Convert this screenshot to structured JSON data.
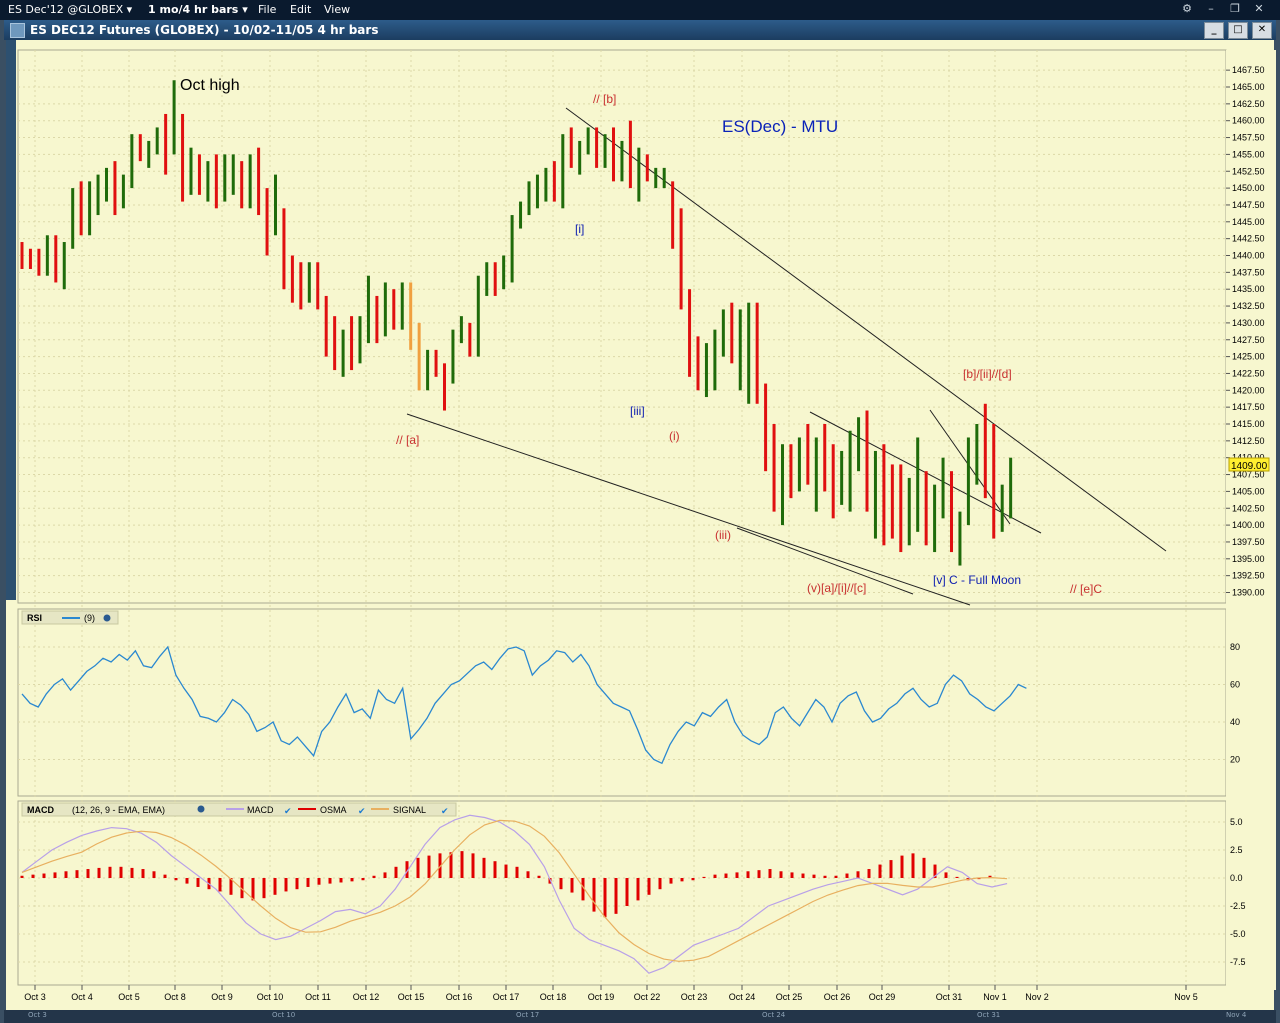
{
  "menubar": {
    "symbol_menu": "ES Dec'12 @GLOBEX ▾",
    "interval_menu": "1 mo/4 hr bars ▾",
    "file": "File",
    "edit": "Edit",
    "view": "View"
  },
  "window": {
    "title": "ES DEC12 Futures (GLOBEX) - 10/02-11/05 4 hr bars"
  },
  "price_panel": {
    "annotations": {
      "oct_high": "Oct high",
      "title": "ES(Dec) - MTU",
      "b": "// [b]",
      "i_bracket": "[i]",
      "iii_bracket": "[iii]",
      "a": "// [a]",
      "i_paren": "(i)",
      "iii_paren": "(iii)",
      "v_a_i_c": "(v)[a]/[i]//[c]",
      "v_c_full_moon": "[v] C - Full Moon",
      "e_c": "// [e]C",
      "b_ii_d": "[b]/[ii]//[d]"
    },
    "last_price": "1409.00",
    "price_ticks": [
      "1467.50",
      "1465.00",
      "1462.50",
      "1460.00",
      "1457.50",
      "1455.00",
      "1452.50",
      "1450.00",
      "1447.50",
      "1445.00",
      "1442.50",
      "1440.00",
      "1437.50",
      "1435.00",
      "1432.50",
      "1430.00",
      "1427.50",
      "1425.00",
      "1422.50",
      "1420.00",
      "1417.50",
      "1415.00",
      "1412.50",
      "1410.00",
      "1407.50",
      "1405.00",
      "1402.50",
      "1400.00",
      "1397.50",
      "1395.00",
      "1392.50",
      "1390.00"
    ]
  },
  "rsi_panel": {
    "label": "RSI",
    "params": "(9)",
    "ticks": [
      "80",
      "60",
      "40",
      "20"
    ]
  },
  "macd_panel": {
    "label": "MACD",
    "params": "(12, 26, 9 - EMA, EMA)",
    "legend": [
      "MACD",
      "OSMA",
      "SIGNAL"
    ],
    "ticks": [
      "5.0",
      "2.5",
      "0.0",
      "-2.5",
      "-5.0",
      "-7.5"
    ]
  },
  "date_axis": [
    "Oct 3",
    "Oct 4",
    "Oct 5",
    "Oct 8",
    "Oct 9",
    "Oct 10",
    "Oct 11",
    "Oct 12",
    "Oct 15",
    "Oct 16",
    "Oct 17",
    "Oct 18",
    "Oct 19",
    "Oct 22",
    "Oct 23",
    "Oct 24",
    "Oct 25",
    "Oct 26",
    "Oct 29",
    "Oct 31",
    "Nov 1",
    "Nov 2",
    "Nov 5"
  ],
  "scroll_labels": [
    "Oct 3",
    "Oct 10",
    "Oct 17",
    "Oct 24",
    "Oct 31",
    "Nov 4"
  ],
  "colors": {
    "up_bar": "#1f6b0a",
    "down_bar": "#e01010",
    "neutral_bar": "#f0a040",
    "rsi_line": "#2a88d0",
    "macd_line": "#b8a0e8",
    "signal_line": "#e8b060",
    "osma_bar": "#e00000",
    "panel_bg": "#f7f7cf"
  },
  "chart_data": [
    {
      "type": "bar",
      "name": "ES DEC12 4 hr price bars (approximate OHLC)",
      "y_unit": "price",
      "ylim": [
        1388.5,
        1470
      ],
      "bars": [
        [
          1441,
          1442,
          1438,
          1440
        ],
        [
          1440,
          1441,
          1438,
          1439
        ],
        [
          1440,
          1441,
          1437,
          1438
        ],
        [
          1438,
          1443,
          1437,
          1442
        ],
        [
          1441,
          1443,
          1436,
          1437
        ],
        [
          1437,
          1442,
          1435,
          1441
        ],
        [
          1441,
          1450,
          1441,
          1449
        ],
        [
          1449,
          1451,
          1443,
          1445
        ],
        [
          1446,
          1451,
          1443,
          1449
        ],
        [
          1448,
          1452,
          1446,
          1450
        ],
        [
          1449,
          1453,
          1448,
          1452
        ],
        [
          1452,
          1454,
          1446,
          1447
        ],
        [
          1448,
          1452,
          1447,
          1451
        ],
        [
          1451,
          1458,
          1450,
          1457
        ],
        [
          1456,
          1458,
          1454,
          1455
        ],
        [
          1455,
          1457,
          1453,
          1456
        ],
        [
          1456,
          1459,
          1455,
          1458
        ],
        [
          1458,
          1461,
          1452,
          1455
        ],
        [
          1456,
          1466,
          1455,
          1460
        ],
        [
          1459,
          1461,
          1448,
          1451
        ],
        [
          1451,
          1456,
          1449,
          1454
        ],
        [
          1454,
          1455,
          1449,
          1451
        ],
        [
          1450,
          1454,
          1448,
          1450
        ],
        [
          1450,
          1455,
          1447,
          1449
        ],
        [
          1449,
          1455,
          1448,
          1452
        ],
        [
          1451,
          1455,
          1449,
          1451
        ],
        [
          1451,
          1454,
          1447,
          1450
        ],
        [
          1450,
          1455,
          1447,
          1454
        ],
        [
          1453,
          1456,
          1446,
          1447
        ],
        [
          1446,
          1450,
          1440,
          1442
        ],
        [
          1441,
          1452,
          1443,
          1446
        ],
        [
          1443,
          1447,
          1435,
          1438
        ],
        [
          1438,
          1440,
          1433,
          1435
        ],
        [
          1435,
          1439,
          1432,
          1434
        ],
        [
          1434,
          1439,
          1433,
          1438
        ],
        [
          1438,
          1439,
          1432,
          1433
        ],
        [
          1432,
          1434,
          1425,
          1427
        ],
        [
          1427,
          1431,
          1423,
          1424
        ],
        [
          1424,
          1429,
          1422,
          1428
        ],
        [
          1428,
          1431,
          1423,
          1425
        ],
        [
          1425,
          1431,
          1424,
          1430
        ],
        [
          1430,
          1437,
          1427,
          1432
        ],
        [
          1431,
          1434,
          1427,
          1429
        ],
        [
          1429,
          1436,
          1428,
          1434
        ],
        [
          1433,
          1435,
          1429,
          1431
        ],
        [
          1431,
          1436,
          1429,
          1434
        ],
        [
          1434,
          1436,
          1426,
          1428
        ],
        [
          1428,
          1430,
          1420,
          1421
        ],
        [
          1421,
          1426,
          1420,
          1425
        ],
        [
          1425,
          1426,
          1422,
          1423
        ],
        [
          1422,
          1424,
          1417,
          1420
        ],
        [
          1420,
          1429,
          1421,
          1428
        ],
        [
          1428,
          1431,
          1427,
          1429
        ],
        [
          1429,
          1430,
          1425,
          1426
        ],
        [
          1426,
          1437,
          1425,
          1435
        ],
        [
          1435,
          1439,
          1434,
          1436
        ],
        [
          1437,
          1439,
          1434,
          1435
        ],
        [
          1436,
          1440,
          1435,
          1438
        ],
        [
          1438,
          1446,
          1436,
          1445
        ],
        [
          1445,
          1448,
          1444,
          1447
        ],
        [
          1447,
          1451,
          1446,
          1450
        ],
        [
          1450,
          1452,
          1447,
          1451
        ],
        [
          1451,
          1453,
          1448,
          1452
        ],
        [
          1450,
          1454,
          1448,
          1449
        ],
        [
          1449,
          1458,
          1447,
          1457
        ],
        [
          1457,
          1459,
          1453,
          1455
        ],
        [
          1454,
          1457,
          1452,
          1456
        ],
        [
          1457,
          1459,
          1455,
          1458
        ],
        [
          1457,
          1459,
          1453,
          1455
        ],
        [
          1455,
          1458,
          1453,
          1457
        ],
        [
          1457,
          1459,
          1451,
          1453
        ],
        [
          1453,
          1457,
          1451,
          1454
        ],
        [
          1456,
          1460,
          1450,
          1451
        ],
        [
          1452,
          1456,
          1448,
          1454
        ],
        [
          1454,
          1455,
          1451,
          1452
        ],
        [
          1451,
          1453,
          1450,
          1452
        ],
        [
          1451,
          1453,
          1450,
          1451
        ],
        [
          1449,
          1451,
          1441,
          1443
        ],
        [
          1443,
          1447,
          1432,
          1434
        ],
        [
          1434,
          1435,
          1422,
          1425
        ],
        [
          1425,
          1428,
          1420,
          1422
        ],
        [
          1422,
          1427,
          1419,
          1424
        ],
        [
          1424,
          1429,
          1420,
          1428
        ],
        [
          1428,
          1432,
          1425,
          1430
        ],
        [
          1430,
          1433,
          1424,
          1427
        ],
        [
          1427,
          1432,
          1420,
          1428
        ],
        [
          1428,
          1433,
          1418,
          1431
        ],
        [
          1431,
          1433,
          1418,
          1420
        ],
        [
          1420,
          1421,
          1408,
          1412
        ],
        [
          1412,
          1415,
          1402,
          1405
        ],
        [
          1405,
          1412,
          1400,
          1409
        ],
        [
          1409,
          1412,
          1404,
          1407
        ],
        [
          1407,
          1413,
          1405,
          1411
        ],
        [
          1411,
          1415,
          1406,
          1409
        ],
        [
          1409,
          1413,
          1402,
          1410
        ],
        [
          1410,
          1415,
          1405,
          1408
        ],
        [
          1408,
          1412,
          1401,
          1404
        ],
        [
          1404,
          1411,
          1403,
          1409
        ],
        [
          1409,
          1414,
          1402,
          1412
        ],
        [
          1412,
          1416,
          1408,
          1413
        ],
        [
          1413,
          1417,
          1402,
          1405
        ],
        [
          1405,
          1411,
          1398,
          1410
        ],
        [
          1410,
          1412,
          1397,
          1405
        ],
        [
          1405,
          1409,
          1398,
          1403
        ],
        [
          1403,
          1409,
          1396,
          1398
        ],
        [
          1398,
          1407,
          1397,
          1400
        ],
        [
          1400,
          1413,
          1399,
          1406
        ],
        [
          1406,
          1408,
          1397,
          1398
        ],
        [
          1398,
          1406,
          1396,
          1403
        ],
        [
          1403,
          1410,
          1401,
          1405
        ],
        [
          1405,
          1408,
          1396,
          1398
        ],
        [
          1398,
          1402,
          1394,
          1401
        ],
        [
          1401,
          1413,
          1400,
          1409
        ],
        [
          1409,
          1415,
          1406,
          1411
        ],
        [
          1411,
          1418,
          1404,
          1407
        ],
        [
          1407,
          1415,
          1398,
          1401
        ],
        [
          1401,
          1406,
          1399,
          1405
        ],
        [
          1405,
          1410,
          1401,
          1409
        ]
      ]
    },
    {
      "type": "line",
      "name": "RSI (9)",
      "ylim": [
        5,
        95
      ]
    },
    {
      "type": "bar",
      "name": "MACD (12, 26, 9 - EMA, EMA)",
      "ylim": [
        -9,
        6.5
      ]
    }
  ]
}
